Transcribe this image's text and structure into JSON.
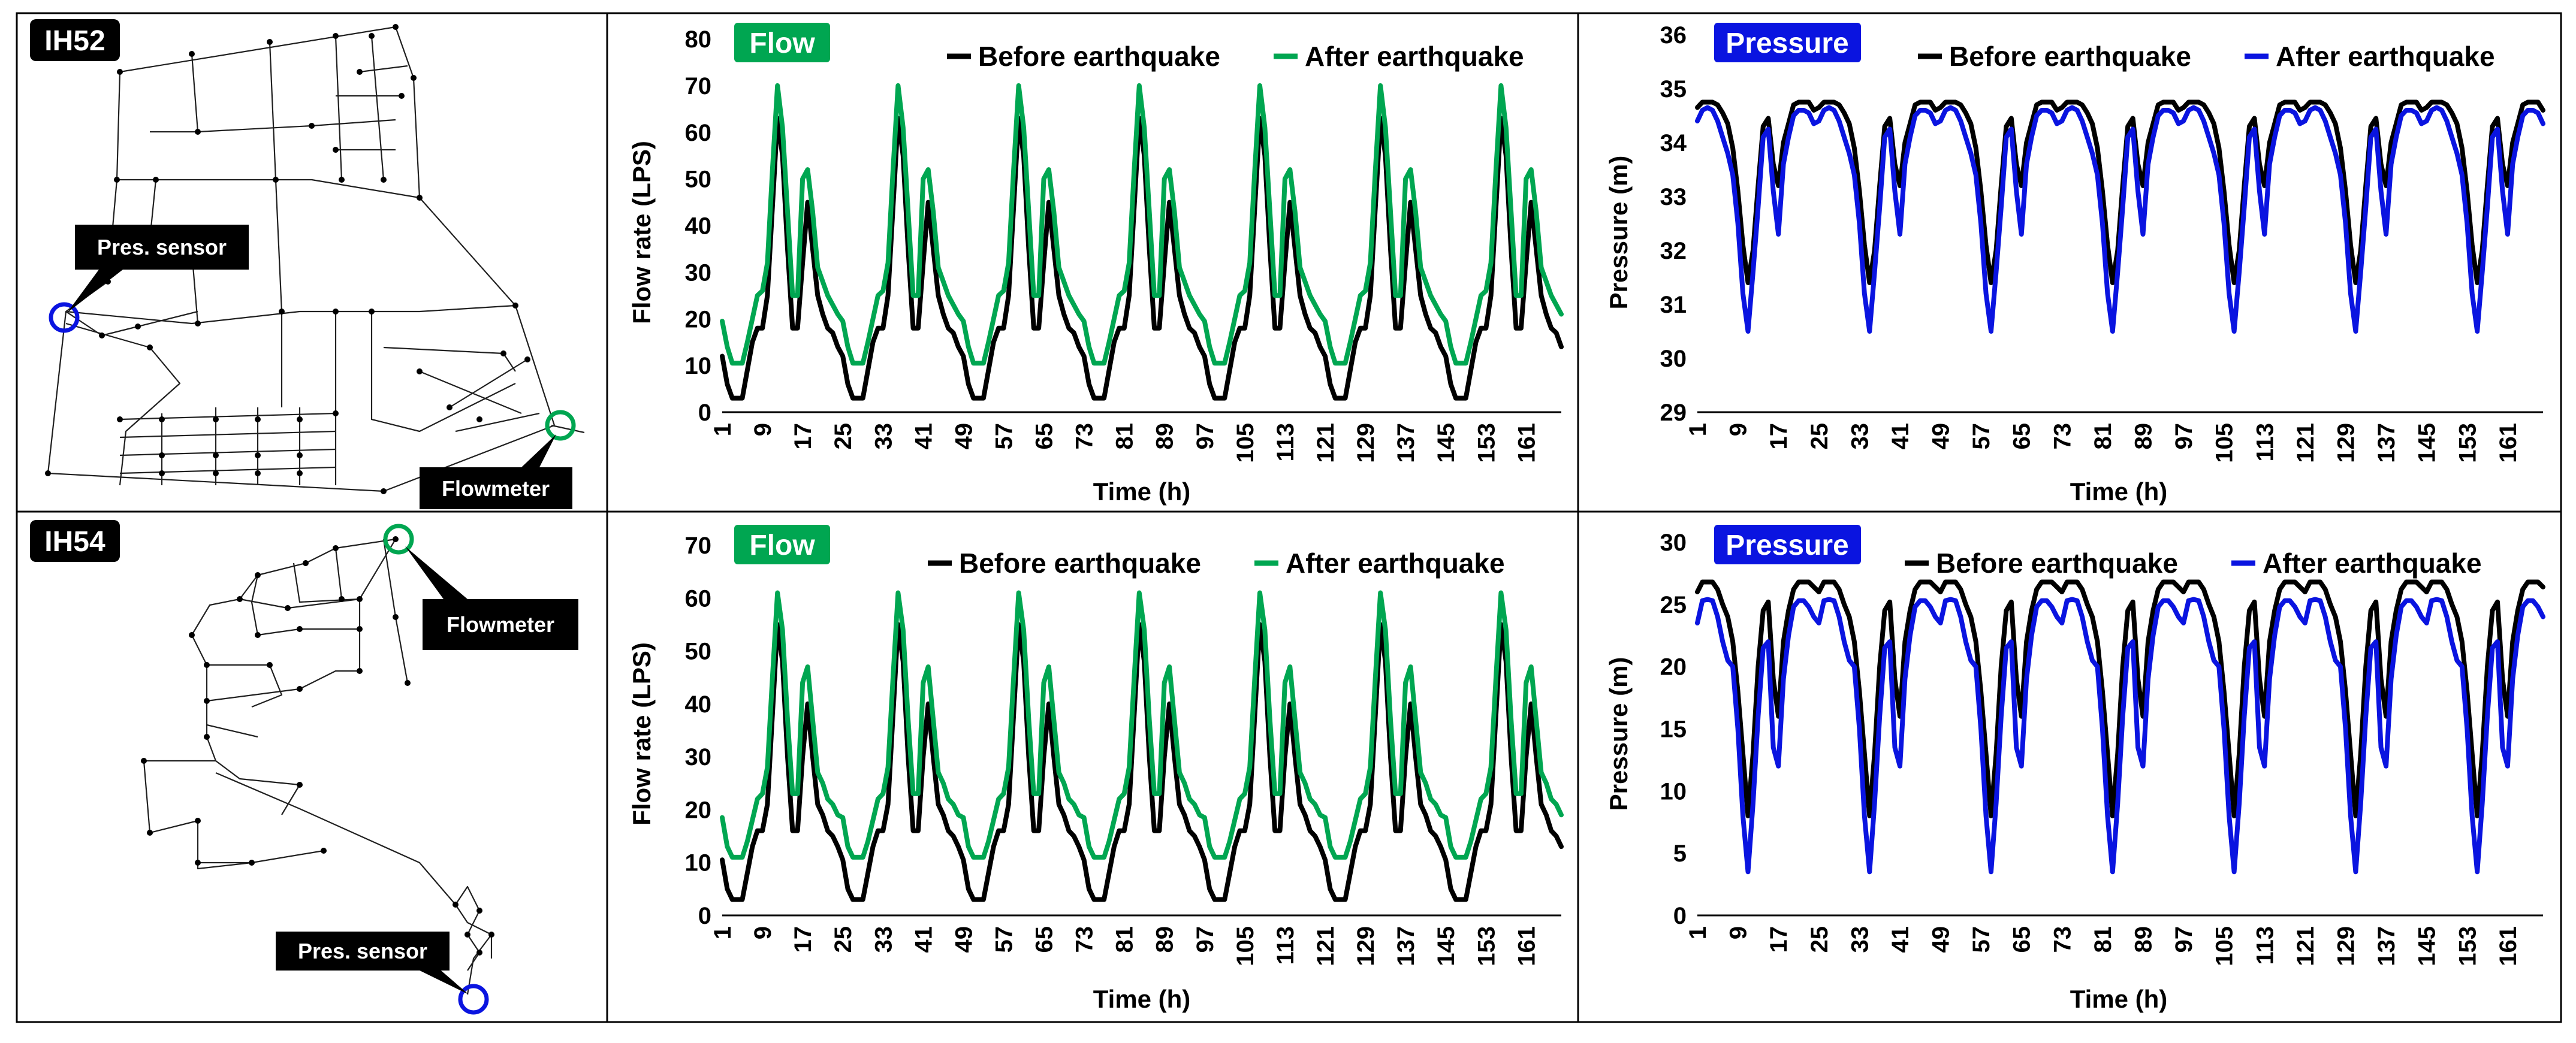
{
  "colors": {
    "before": "#000000",
    "flow_after": "#00A651",
    "pressure_after": "#0A14E0",
    "flowmeter_marker": "#00A651",
    "sensor_marker": "#0A14E0"
  },
  "networks": [
    {
      "name": "IH52",
      "labels": {
        "sensor": "Pres. sensor",
        "flowmeter": "Flowmeter"
      },
      "icons": {
        "sensor": "blue-circle-marker",
        "flowmeter": "green-circle-marker"
      }
    },
    {
      "name": "IH54",
      "labels": {
        "sensor": "Pres. sensor",
        "flowmeter": "Flowmeter"
      },
      "icons": {
        "sensor": "blue-circle-marker",
        "flowmeter": "green-circle-marker"
      }
    }
  ],
  "chart_data": [
    {
      "id": "ih52-flow",
      "type": "line",
      "tag": "Flow",
      "xlabel": "Time (h)",
      "ylabel": "Flow rate (LPS)",
      "ylim": [
        0,
        80
      ],
      "yticks": [
        0,
        10,
        20,
        30,
        40,
        50,
        60,
        70,
        80
      ],
      "xlim": [
        1,
        168
      ],
      "xticks": [
        "1",
        "9",
        "17",
        "25",
        "33",
        "41",
        "49",
        "57",
        "65",
        "73",
        "81",
        "89",
        "97",
        "105",
        "113",
        "121",
        "129",
        "137",
        "145",
        "153",
        "161"
      ],
      "x_hours": [
        1,
        2,
        3,
        4,
        5,
        6,
        7,
        8,
        9,
        10,
        11,
        12,
        13,
        14,
        15,
        16,
        17,
        18,
        19,
        20,
        21,
        22,
        23,
        24,
        25
      ],
      "repeat_period_h": 24,
      "repeat_days": 7,
      "legend_location": "top-right",
      "series": [
        {
          "name": "Before earthquake",
          "color_key": "before",
          "daily_profile": [
            12,
            6,
            3,
            3,
            3,
            9,
            15,
            18,
            18,
            25,
            44,
            63,
            55,
            35,
            18,
            18,
            32,
            45,
            35,
            25,
            21,
            18,
            17,
            14,
            12
          ]
        },
        {
          "name": "After earthquake",
          "color_key": "flow_after",
          "daily_profile": [
            19.5,
            14,
            10.5,
            10.5,
            10.5,
            15,
            20,
            25,
            26,
            32,
            52,
            70,
            61,
            43,
            25,
            25,
            50,
            52,
            43,
            31,
            28,
            25,
            23,
            21,
            19.5
          ]
        }
      ]
    },
    {
      "id": "ih52-pressure",
      "type": "line",
      "tag": "Pressure",
      "xlabel": "Time (h)",
      "ylabel": "Pressure (m)",
      "ylim": [
        29,
        36
      ],
      "yticks": [
        29,
        30,
        31,
        32,
        33,
        34,
        35,
        36
      ],
      "xlim": [
        1,
        168
      ],
      "xticks": [
        "1",
        "9",
        "17",
        "25",
        "33",
        "41",
        "49",
        "57",
        "65",
        "73",
        "81",
        "89",
        "97",
        "105",
        "113",
        "121",
        "129",
        "137",
        "145",
        "153",
        "161"
      ],
      "x_hours": [
        1,
        2,
        3,
        4,
        5,
        6,
        7,
        8,
        9,
        10,
        11,
        12,
        13,
        14,
        15,
        16,
        17,
        18,
        19,
        20,
        21,
        22,
        23,
        24,
        25
      ],
      "repeat_period_h": 24,
      "repeat_days": 7,
      "legend_location": "top-right",
      "series": [
        {
          "name": "Before earthquake",
          "color_key": "before",
          "daily_profile": [
            34.65,
            34.75,
            34.75,
            34.75,
            34.7,
            34.55,
            34.35,
            33.9,
            33.1,
            32.1,
            31.4,
            32.0,
            33.2,
            34.3,
            34.45,
            33.6,
            33.2,
            34.0,
            34.35,
            34.7,
            34.75,
            34.75,
            34.75,
            34.6,
            34.65
          ]
        },
        {
          "name": "After earthquake",
          "color_key": "pressure_after",
          "daily_profile": [
            34.4,
            34.6,
            34.65,
            34.6,
            34.4,
            34.1,
            33.8,
            33.4,
            32.5,
            31.2,
            30.5,
            31.6,
            32.8,
            34.1,
            34.25,
            33.1,
            32.3,
            33.6,
            34.1,
            34.5,
            34.6,
            34.6,
            34.55,
            34.35,
            34.4
          ]
        }
      ]
    },
    {
      "id": "ih54-flow",
      "type": "line",
      "tag": "Flow",
      "xlabel": "Time (h)",
      "ylabel": "Flow rate (LPS)",
      "ylim": [
        0,
        70
      ],
      "yticks": [
        0,
        10,
        20,
        30,
        40,
        50,
        60,
        70
      ],
      "xlim": [
        1,
        168
      ],
      "xticks": [
        "1",
        "9",
        "17",
        "25",
        "33",
        "41",
        "49",
        "57",
        "65",
        "73",
        "81",
        "89",
        "97",
        "105",
        "113",
        "121",
        "129",
        "137",
        "145",
        "153",
        "161"
      ],
      "x_hours": [
        1,
        2,
        3,
        4,
        5,
        6,
        7,
        8,
        9,
        10,
        11,
        12,
        13,
        14,
        15,
        16,
        17,
        18,
        19,
        20,
        21,
        22,
        23,
        24,
        25
      ],
      "repeat_period_h": 24,
      "repeat_days": 7,
      "legend_location": "top-right",
      "series": [
        {
          "name": "Before earthquake",
          "color_key": "before",
          "daily_profile": [
            10.5,
            5,
            3,
            3,
            3,
            8,
            13,
            16,
            16,
            21,
            38,
            55,
            48,
            30,
            16,
            16,
            30,
            40,
            30,
            21,
            19,
            16,
            15,
            13,
            10.5
          ]
        },
        {
          "name": "After earthquake",
          "color_key": "flow_after",
          "daily_profile": [
            18.5,
            13,
            11,
            11,
            11,
            14,
            18,
            22,
            23,
            28,
            45,
            61,
            54,
            37,
            23,
            23,
            44,
            47,
            37,
            27,
            25,
            22,
            21,
            19,
            18.5
          ]
        }
      ]
    },
    {
      "id": "ih54-pressure",
      "type": "line",
      "tag": "Pressure",
      "xlabel": "Time (h)",
      "ylabel": "Pressure (m)",
      "ylim": [
        0,
        30
      ],
      "yticks": [
        0,
        5,
        10,
        15,
        20,
        25,
        30
      ],
      "xlim": [
        1,
        168
      ],
      "xticks": [
        "1",
        "9",
        "17",
        "25",
        "33",
        "41",
        "49",
        "57",
        "65",
        "73",
        "81",
        "89",
        "97",
        "105",
        "113",
        "121",
        "129",
        "137",
        "145",
        "153",
        "161"
      ],
      "x_hours": [
        1,
        2,
        3,
        4,
        5,
        6,
        7,
        8,
        9,
        10,
        11,
        12,
        13,
        14,
        15,
        16,
        17,
        18,
        19,
        20,
        21,
        22,
        23,
        24,
        25
      ],
      "repeat_period_h": 24,
      "repeat_days": 7,
      "legend_location": "top-right",
      "series": [
        {
          "name": "Before earthquake",
          "color_key": "before",
          "daily_profile": [
            26,
            26.8,
            26.8,
            26.8,
            26.2,
            25,
            24,
            22,
            18,
            13,
            8,
            13,
            20,
            24.5,
            25.2,
            19,
            16,
            22,
            24.5,
            26.2,
            26.8,
            26.8,
            26.8,
            26.4,
            26
          ]
        },
        {
          "name": "After earthquake",
          "color_key": "pressure_after",
          "daily_profile": [
            23.5,
            25.3,
            25.4,
            25.3,
            24,
            22,
            20.5,
            20,
            15,
            8,
            3.5,
            9,
            16,
            21.5,
            22,
            13.5,
            12,
            19,
            22.5,
            24.8,
            25.3,
            25.3,
            24.8,
            24,
            23.5
          ]
        }
      ]
    }
  ]
}
